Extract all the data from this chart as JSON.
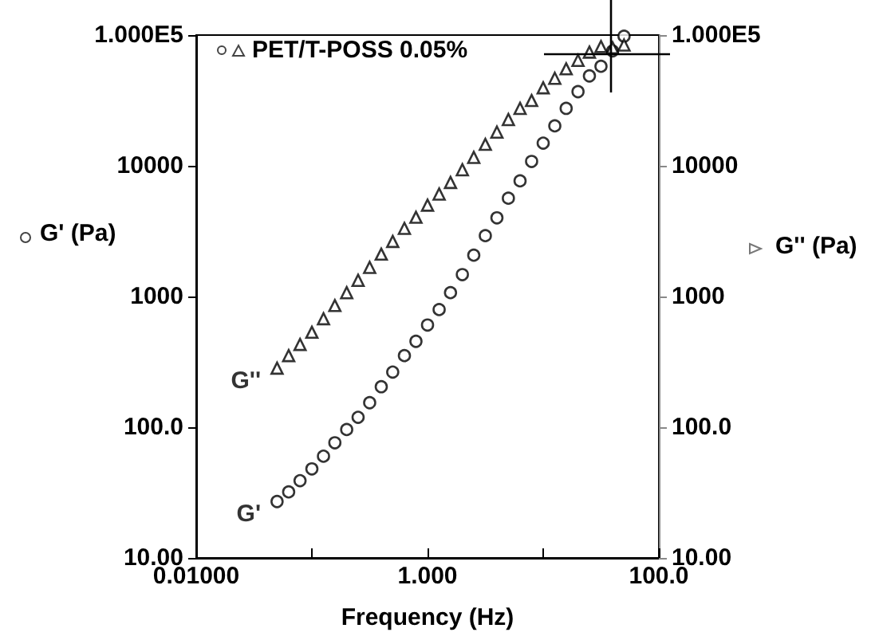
{
  "chart_data": {
    "type": "scatter",
    "xlabel": "Frequency (Hz)",
    "ylabel": "G' (Pa)",
    "y2label": "G'' (Pa)",
    "annotations": [
      "PET/T-POSS 0.05%"
    ],
    "x": [
      0.05,
      0.063,
      0.079,
      0.1,
      0.126,
      0.158,
      0.2,
      0.251,
      0.316,
      0.398,
      0.5,
      0.631,
      0.794,
      1,
      1.26,
      1.58,
      2,
      2.51,
      3.16,
      3.98,
      5,
      6.31,
      7.94,
      10,
      12.6,
      15.8,
      20,
      25.1,
      31.6,
      39.8,
      50
    ],
    "series": [
      {
        "name": "G'",
        "color": "#000000",
        "marker": "circle",
        "values": [
          27,
          32,
          39,
          48,
          60,
          76,
          96,
          119,
          154,
          204,
          264,
          353,
          454,
          605,
          794,
          1070,
          1470,
          2070,
          2920,
          4000,
          5650,
          7670,
          10800,
          14900,
          20200,
          27500,
          36900,
          48700,
          57700,
          75700,
          98000
        ]
      },
      {
        "name": "G''",
        "color": "#000000",
        "marker": "triangle",
        "values": [
          283,
          353,
          430,
          533,
          676,
          853,
          1070,
          1330,
          1670,
          2110,
          2640,
          3320,
          4040,
          5000,
          6080,
          7460,
          9330,
          11600,
          14600,
          18100,
          22600,
          27500,
          31600,
          39500,
          46700,
          55200,
          64000,
          74100,
          81700,
          80000,
          83900
        ]
      }
    ],
    "log": "xy",
    "xlim": [
      0.01,
      100
    ],
    "xticks": [
      {
        "value": 0.01,
        "label": "0.01000"
      },
      {
        "value": 0.1,
        "label": null
      },
      {
        "value": 1,
        "label": "1.000"
      },
      {
        "value": 10,
        "label": null
      },
      {
        "value": 100,
        "label": "100.0"
      }
    ],
    "ylim": [
      10,
      100000
    ],
    "yticks": [
      {
        "value": 10,
        "label": "10.00"
      },
      {
        "value": 100,
        "label": "100.0"
      },
      {
        "value": 1000,
        "label": "1000"
      },
      {
        "value": 10000,
        "label": "10000"
      },
      {
        "value": 100000,
        "label": "1.000E5"
      }
    ],
    "grid": false,
    "legend": false
  }
}
